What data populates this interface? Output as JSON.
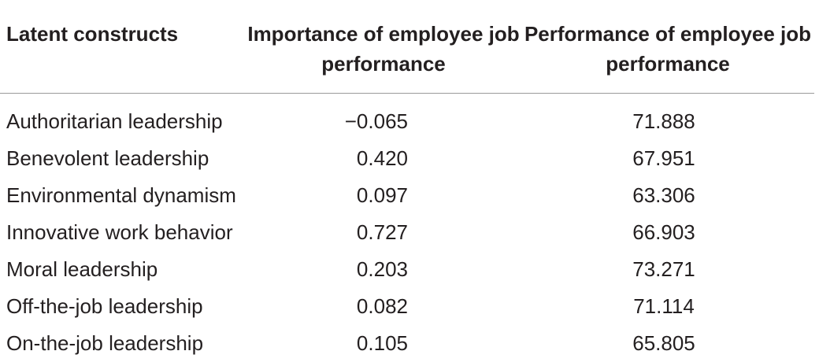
{
  "table": {
    "headers": {
      "construct": "Latent constructs",
      "importance": "Importance of employee job performance",
      "performance": "Performance of employee job performance"
    },
    "rows": [
      {
        "construct": "Authoritarian leadership",
        "importance": "−0.065",
        "performance": "71.888"
      },
      {
        "construct": "Benevolent leadership",
        "importance": "0.420",
        "performance": "67.951"
      },
      {
        "construct": "Environmental dynamism",
        "importance": "0.097",
        "performance": "63.306"
      },
      {
        "construct": "Innovative work behavior",
        "importance": "0.727",
        "performance": "66.903"
      },
      {
        "construct": "Moral leadership",
        "importance": "0.203",
        "performance": "73.271"
      },
      {
        "construct": "Off-the-job leadership",
        "importance": "0.082",
        "performance": "71.114"
      },
      {
        "construct": "On-the-job leadership",
        "importance": "0.105",
        "performance": "65.805"
      }
    ]
  }
}
